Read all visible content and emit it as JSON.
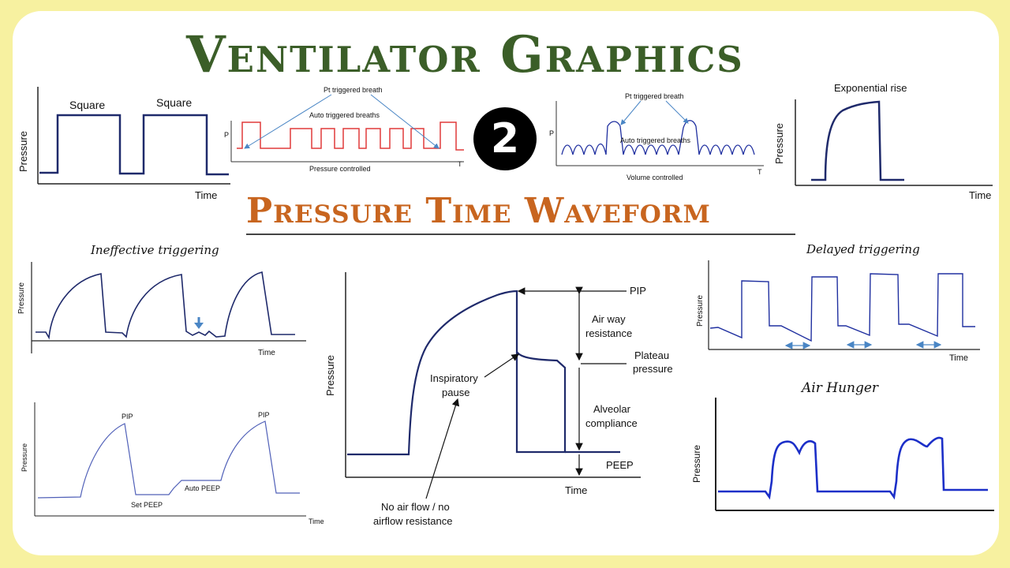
{
  "title": "Ventilator Graphics",
  "subtitle": "Pressure Time Waveform",
  "badge": "2",
  "labels": {
    "square_1": "Square",
    "square_2": "Square",
    "pressure": "Pressure",
    "time": "Time",
    "pt_triggered": "Pt triggered breath",
    "auto_triggered": "Auto triggered breaths",
    "p_axis": "P",
    "t_axis": "T",
    "pressure_controlled": "Pressure controlled",
    "volume_controlled": "Volume controlled",
    "exponential_rise": "Exponential rise",
    "ineffective_triggering": "Ineffective triggering",
    "delayed_triggering": "Delayed triggering",
    "air_hunger": "Air Hunger",
    "pip": "PIP",
    "set_peep": "Set PEEP",
    "auto_peep": "Auto PEEP",
    "airway_resistance_1": "Air way",
    "airway_resistance_2": "resistance",
    "plateau_1": "Plateau",
    "plateau_2": "pressure",
    "alveolar_1": "Alveolar",
    "alveolar_2": "compliance",
    "peep": "PEEP",
    "inspiratory_1": "Inspiratory",
    "inspiratory_2": "pause",
    "no_airflow_1": "No air flow / no",
    "no_airflow_2": "airflow resistance"
  },
  "colors": {
    "title_green": "#3b5e28",
    "subtitle_orange": "#c8651f",
    "wave_navy": "#1f2a6b",
    "wave_red": "#e03a3a",
    "wave_blue": "#2030c0",
    "arrow_blue": "#4a86c5"
  }
}
